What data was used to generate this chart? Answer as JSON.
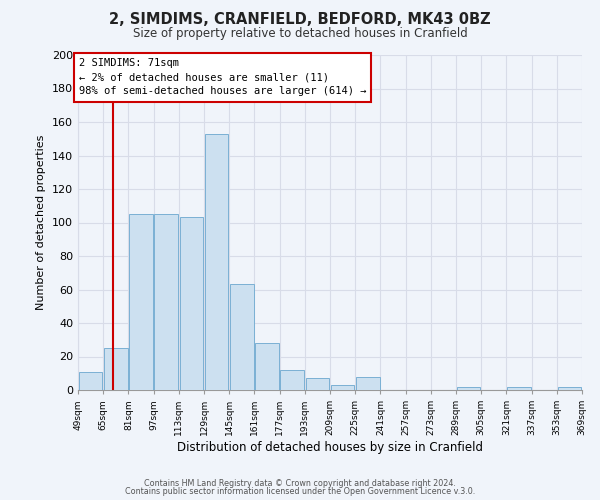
{
  "title": "2, SIMDIMS, CRANFIELD, BEDFORD, MK43 0BZ",
  "subtitle": "Size of property relative to detached houses in Cranfield",
  "xlabel": "Distribution of detached houses by size in Cranfield",
  "ylabel": "Number of detached properties",
  "bar_color": "#cce0f0",
  "bar_edge_color": "#7ab0d4",
  "bins": [
    49,
    65,
    81,
    97,
    113,
    129,
    145,
    161,
    177,
    193,
    209,
    225,
    241,
    257,
    273,
    289,
    305,
    321,
    337,
    353,
    369
  ],
  "counts": [
    11,
    25,
    105,
    105,
    103,
    153,
    63,
    28,
    12,
    7,
    3,
    8,
    0,
    0,
    0,
    2,
    0,
    2,
    0,
    2
  ],
  "xlabels": [
    "49sqm",
    "65sqm",
    "81sqm",
    "97sqm",
    "113sqm",
    "129sqm",
    "145sqm",
    "161sqm",
    "177sqm",
    "193sqm",
    "209sqm",
    "225sqm",
    "241sqm",
    "257sqm",
    "273sqm",
    "289sqm",
    "305sqm",
    "321sqm",
    "337sqm",
    "353sqm",
    "369sqm"
  ],
  "ylim": [
    0,
    200
  ],
  "yticks": [
    0,
    20,
    40,
    60,
    80,
    100,
    120,
    140,
    160,
    180,
    200
  ],
  "vline_x": 71,
  "vline_color": "#cc0000",
  "annotation_title": "2 SIMDIMS: 71sqm",
  "annotation_line1": "← 2% of detached houses are smaller (11)",
  "annotation_line2": "98% of semi-detached houses are larger (614) →",
  "annotation_box_color": "#ffffff",
  "annotation_box_edge": "#cc0000",
  "footer1": "Contains HM Land Registry data © Crown copyright and database right 2024.",
  "footer2": "Contains public sector information licensed under the Open Government Licence v.3.0.",
  "background_color": "#f0f4fa",
  "plot_background": "#f0f4fa",
  "grid_color": "#d8dce8"
}
